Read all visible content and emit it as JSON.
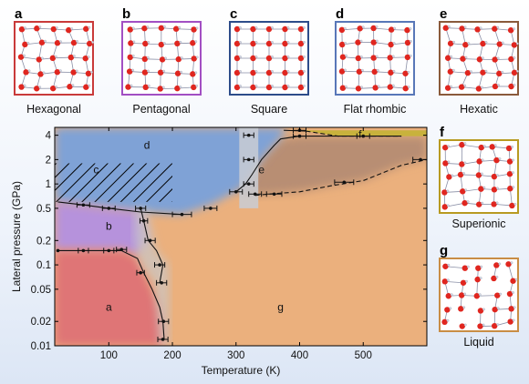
{
  "chart_data": {
    "type": "phase-diagram",
    "xlabel": "Temperature (K)",
    "ylabel": "Lateral pressure (GPa)",
    "xlim": [
      15,
      600
    ],
    "ylim": [
      0.01,
      5
    ],
    "yscale": "log",
    "x_ticks": [
      100,
      200,
      300,
      400,
      500
    ],
    "y_ticks": [
      {
        "value": 4,
        "label": "4"
      },
      {
        "value": 2,
        "label": "2"
      },
      {
        "value": 1,
        "label": "1"
      },
      {
        "value": 0.5,
        "label": "0.5"
      },
      {
        "value": 0.2,
        "label": "0.2"
      },
      {
        "value": 0.1,
        "label": "0.1"
      },
      {
        "value": 0.05,
        "label": "0.05"
      },
      {
        "value": 0.02,
        "label": "0.02"
      },
      {
        "value": 0.01,
        "label": "0.01"
      }
    ],
    "regions": [
      {
        "id": "a",
        "label": "a",
        "phase": "Hexagonal",
        "label_x": 100,
        "label_y": 0.03,
        "color": "#df7576"
      },
      {
        "id": "b",
        "label": "b",
        "phase": "Pentagonal",
        "label_x": 100,
        "label_y": 0.3,
        "color": "#b692dc"
      },
      {
        "id": "c",
        "label": "c",
        "phase": "Square",
        "label_x": 80,
        "label_y": 1.5,
        "color": "#7fa2d6"
      },
      {
        "id": "d",
        "label": "d",
        "phase": "Flat rhombic",
        "label_x": 160,
        "label_y": 3,
        "color": "#7fa2d6"
      },
      {
        "id": "e",
        "label": "e",
        "phase": "Hexatic",
        "label_x": 340,
        "label_y": 1.5,
        "color": "#b88e73"
      },
      {
        "id": "f",
        "label": "f",
        "phase": "Superionic",
        "label_x": 495,
        "label_y": 4.1,
        "color": "#c8b23c"
      },
      {
        "id": "g",
        "label": "g",
        "phase": "Liquid",
        "label_x": 370,
        "label_y": 0.03,
        "color": "#ebb07d"
      }
    ],
    "boundaries": [
      {
        "style": "solid",
        "points": [
          [
            20,
            0.15
          ],
          [
            60,
            0.15
          ],
          [
            100,
            0.15
          ],
          [
            120,
            0.15
          ],
          [
            145,
            0.12
          ],
          [
            155,
            0.08
          ],
          [
            168,
            0.05
          ],
          [
            180,
            0.03
          ],
          [
            185,
            0.02
          ],
          [
            187,
            0.012
          ]
        ]
      },
      {
        "style": "solid",
        "points": [
          [
            20,
            0.6
          ],
          [
            60,
            0.55
          ],
          [
            100,
            0.5
          ],
          [
            150,
            0.45
          ],
          [
            215,
            0.42
          ]
        ]
      },
      {
        "style": "solid",
        "points": [
          [
            150,
            0.5
          ],
          [
            155,
            0.35
          ],
          [
            162,
            0.2
          ],
          [
            175,
            0.15
          ],
          [
            185,
            0.1
          ],
          [
            180,
            0.06
          ]
        ]
      },
      {
        "style": "solid",
        "points": [
          [
            300,
            0.8
          ],
          [
            315,
            1.0
          ],
          [
            325,
            1.3
          ],
          [
            340,
            2.0
          ],
          [
            360,
            3.0
          ],
          [
            370,
            3.6
          ],
          [
            400,
            3.9
          ],
          [
            450,
            3.9
          ],
          [
            500,
            3.9
          ],
          [
            560,
            3.9
          ]
        ]
      },
      {
        "style": "dashed",
        "points": [
          [
            330,
            0.72
          ],
          [
            350,
            0.75
          ],
          [
            400,
            0.8
          ],
          [
            450,
            0.95
          ],
          [
            500,
            1.1
          ],
          [
            560,
            1.7
          ],
          [
            600,
            2.0
          ]
        ]
      },
      {
        "style": "solid",
        "points": [
          [
            375,
            4.6
          ],
          [
            410,
            4.5
          ]
        ]
      },
      {
        "style": "dashed",
        "points": [
          [
            410,
            4.5
          ],
          [
            460,
            3.9
          ],
          [
            560,
            3.9
          ]
        ]
      }
    ],
    "errorbars": [
      {
        "x": 20,
        "y": 0.15,
        "xerr": 0
      },
      {
        "x": 60,
        "y": 0.15,
        "xerr": 8
      },
      {
        "x": 100,
        "y": 0.15,
        "xerr": 8
      },
      {
        "x": 120,
        "y": 0.155,
        "xerr": 8
      },
      {
        "x": 150,
        "y": 0.08,
        "xerr": 6
      },
      {
        "x": 183,
        "y": 0.06,
        "xerr": 8
      },
      {
        "x": 186,
        "y": 0.02,
        "xerr": 8
      },
      {
        "x": 185,
        "y": 0.012,
        "xerr": 8
      },
      {
        "x": 60,
        "y": 0.55,
        "xerr": 10
      },
      {
        "x": 100,
        "y": 0.5,
        "xerr": 10
      },
      {
        "x": 150,
        "y": 0.5,
        "xerr": 8
      },
      {
        "x": 155,
        "y": 0.35,
        "xerr": 6
      },
      {
        "x": 215,
        "y": 0.42,
        "xerr": 15
      },
      {
        "x": 165,
        "y": 0.2,
        "xerr": 8
      },
      {
        "x": 180,
        "y": 0.1,
        "xerr": 8
      },
      {
        "x": 260,
        "y": 0.5,
        "xerr": 10
      },
      {
        "x": 300,
        "y": 0.8,
        "xerr": 10
      },
      {
        "x": 320,
        "y": 1.0,
        "xerr": 8
      },
      {
        "x": 320,
        "y": 2.0,
        "xerr": 8
      },
      {
        "x": 320,
        "y": 4.0,
        "xerr": 8
      },
      {
        "x": 330,
        "y": 0.75,
        "xerr": 10
      },
      {
        "x": 360,
        "y": 0.75,
        "xerr": 12
      },
      {
        "x": 470,
        "y": 1.05,
        "xerr": 15
      },
      {
        "x": 590,
        "y": 2.0,
        "xerr": 12
      },
      {
        "x": 400,
        "y": 4.6,
        "xerr": 10
      },
      {
        "x": 400,
        "y": 3.9,
        "xerr": 10
      },
      {
        "x": 500,
        "y": 3.9,
        "xerr": 10
      }
    ]
  },
  "panels": [
    {
      "letter": "a",
      "caption": "Hexagonal",
      "border_color": "#c93a3a"
    },
    {
      "letter": "b",
      "caption": "Pentagonal",
      "border_color": "#a24fc3"
    },
    {
      "letter": "c",
      "caption": "Square",
      "border_color": "#2d4c8a"
    },
    {
      "letter": "d",
      "caption": "Flat rhombic",
      "border_color": "#5877b8"
    },
    {
      "letter": "e",
      "caption": "Hexatic",
      "border_color": "#8a5a3b"
    },
    {
      "letter": "f",
      "caption": "Superionic",
      "border_color": "#b89a21"
    },
    {
      "letter": "g",
      "caption": "Liquid",
      "border_color": "#c98d45"
    }
  ]
}
